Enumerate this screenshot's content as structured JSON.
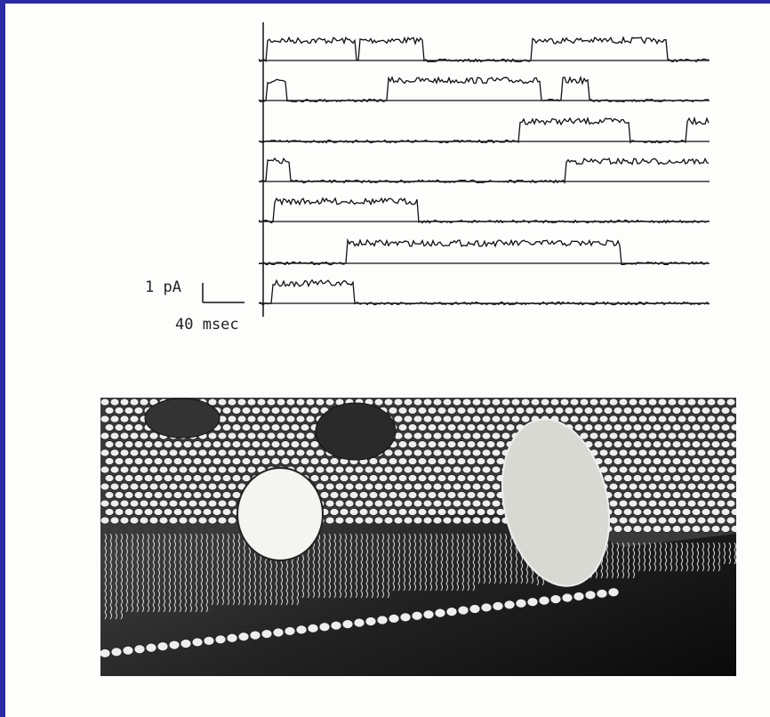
{
  "scale_bar": {
    "current": "1 pA",
    "time": "40 msec"
  }
}
